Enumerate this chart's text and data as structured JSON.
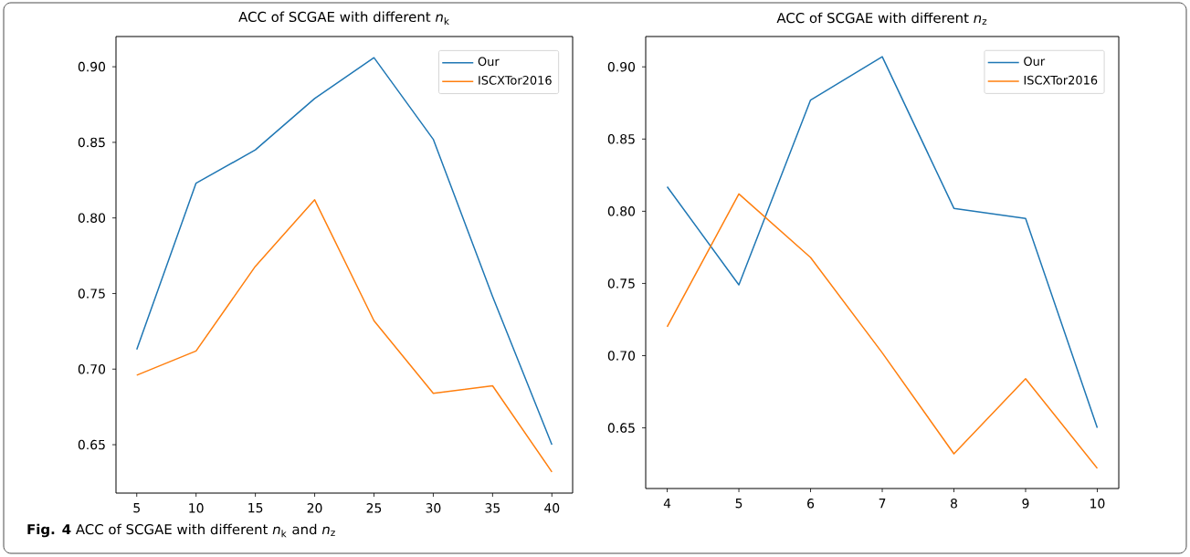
{
  "chart_data": [
    {
      "type": "line",
      "title": "ACC of SCGAE with different *n*$_{k}$",
      "x": [
        5,
        10,
        15,
        20,
        25,
        30,
        35,
        40
      ],
      "series": [
        {
          "name": "Our",
          "color": "#1f77b4",
          "values": [
            0.713,
            0.823,
            0.845,
            0.879,
            0.906,
            0.852,
            0.748,
            0.65
          ]
        },
        {
          "name": "ISCXTor2016",
          "color": "#ff7f0e",
          "values": [
            0.696,
            0.712,
            0.768,
            0.812,
            0.732,
            0.684,
            0.689,
            0.632
          ]
        }
      ],
      "xlim": [
        3.25,
        41.75
      ],
      "ylim": [
        0.618,
        0.92
      ],
      "xticks": [
        5,
        10,
        15,
        20,
        25,
        30,
        35,
        40
      ],
      "yticks": [
        {
          "value": 0.65,
          "label": "0.65"
        },
        {
          "value": 0.7,
          "label": "0.70"
        },
        {
          "value": 0.75,
          "label": "0.75"
        },
        {
          "value": 0.8,
          "label": "0.80"
        },
        {
          "value": 0.85,
          "label": "0.85"
        },
        {
          "value": 0.9,
          "label": "0.90"
        }
      ],
      "legend": "top right",
      "grid": false,
      "annotations": [
        "**Fig. 4** ACC of SCGAE with different *n*$_{k}$ and *n*$_{z}$"
      ]
    },
    {
      "type": "line",
      "title": "ACC of SCGAE with different *n*$_{z}$",
      "x": [
        4,
        5,
        6,
        7,
        8,
        9,
        10
      ],
      "series": [
        {
          "name": "Our",
          "color": "#1f77b4",
          "values": [
            0.817,
            0.749,
            0.877,
            0.907,
            0.802,
            0.795,
            0.65
          ]
        },
        {
          "name": "ISCXTor2016",
          "color": "#ff7f0e",
          "values": [
            0.72,
            0.812,
            0.768,
            0.702,
            0.632,
            0.684,
            0.622
          ]
        }
      ],
      "xlim": [
        3.7,
        10.3
      ],
      "ylim": [
        0.608,
        0.921
      ],
      "xticks": [
        4,
        5,
        6,
        7,
        8,
        9,
        10
      ],
      "yticks": [
        {
          "value": 0.65,
          "label": "0.65"
        },
        {
          "value": 0.7,
          "label": "0.70"
        },
        {
          "value": 0.75,
          "label": "0.75"
        },
        {
          "value": 0.8,
          "label": "0.80"
        },
        {
          "value": 0.85,
          "label": "0.85"
        },
        {
          "value": 0.9,
          "label": "0.90"
        }
      ],
      "legend": "top right",
      "grid": false
    }
  ]
}
